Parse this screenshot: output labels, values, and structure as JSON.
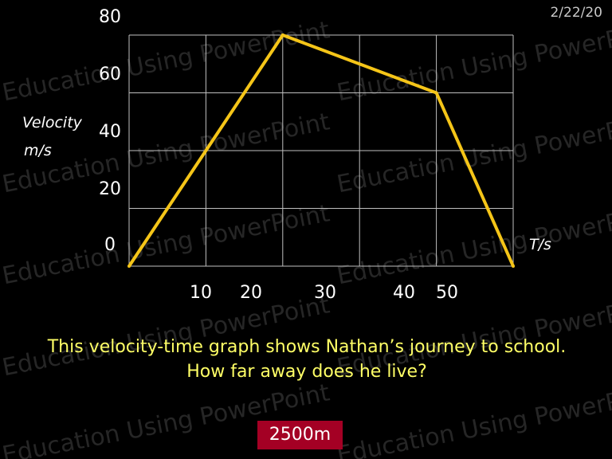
{
  "date": "2/22/20",
  "watermark": "Education Using PowerPoint",
  "chart_data": {
    "type": "line",
    "xlabel": "T/s",
    "ylabel_line1": "Velocity",
    "ylabel_line2": "m/s",
    "x_tick_labels": [
      "10",
      "20",
      "30",
      "40",
      "50"
    ],
    "y_tick_labels": [
      "80",
      "60",
      "40",
      "20",
      "0"
    ],
    "ylim": [
      0,
      80
    ],
    "grid": true,
    "line_color": "#f5c518",
    "series": [
      {
        "x": [
          0,
          20,
          40,
          50
        ],
        "y": [
          0,
          80,
          60,
          0
        ]
      }
    ]
  },
  "question": "This velocity-time graph shows Nathan’s journey to school.  How far away does he live?",
  "answer": "2500m",
  "colors": {
    "background": "#000000",
    "question_text": "#ffff66",
    "answer_box": "#a40024",
    "grid": "#bfbfbf"
  }
}
